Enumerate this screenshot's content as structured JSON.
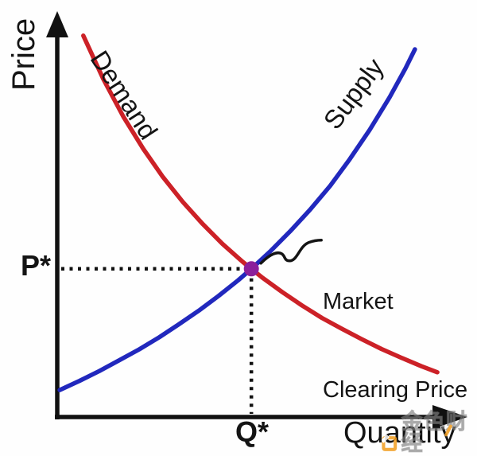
{
  "chart_data": {
    "type": "line",
    "title": "",
    "xlabel": "Quantity",
    "ylabel": "Price",
    "axis_range": {
      "x": [
        0,
        100
      ],
      "y": [
        0,
        100
      ]
    },
    "grid": false,
    "legend": "labels drawn along curves",
    "axis_color": "#111111",
    "series": [
      {
        "name": "Demand",
        "color": "#cc2127",
        "points": [
          [
            6.4,
            94.7
          ],
          [
            11.3,
            83.9
          ],
          [
            16.2,
            74.6
          ],
          [
            21.1,
            66.6
          ],
          [
            25.9,
            59.6
          ],
          [
            30.8,
            53.4
          ],
          [
            35.7,
            47.9
          ],
          [
            40.5,
            43.0
          ],
          [
            45.4,
            38.6
          ],
          [
            47.6,
            36.8
          ],
          [
            50.3,
            34.6
          ],
          [
            55.2,
            31.0
          ],
          [
            60.0,
            27.7
          ],
          [
            64.9,
            24.6
          ],
          [
            69.8,
            21.9
          ],
          [
            74.7,
            19.3
          ],
          [
            79.5,
            16.9
          ],
          [
            84.4,
            14.7
          ],
          [
            89.3,
            12.6
          ],
          [
            93.2,
            11.1
          ]
        ]
      },
      {
        "name": "Supply",
        "color": "#2128bd",
        "points": [
          [
            0.6,
            6.7
          ],
          [
            5.5,
            9.0
          ],
          [
            10.3,
            11.4
          ],
          [
            15.2,
            14.1
          ],
          [
            20.1,
            16.8
          ],
          [
            25.0,
            19.8
          ],
          [
            29.8,
            23.0
          ],
          [
            34.7,
            26.4
          ],
          [
            39.6,
            30.1
          ],
          [
            44.4,
            34.0
          ],
          [
            47.6,
            36.8
          ],
          [
            52.2,
            41.1
          ],
          [
            57.1,
            46.1
          ],
          [
            62.0,
            51.5
          ],
          [
            66.9,
            57.4
          ],
          [
            71.7,
            64.0
          ],
          [
            76.6,
            71.3
          ],
          [
            81.5,
            79.4
          ],
          [
            85.4,
            86.6
          ],
          [
            87.7,
            91.3
          ]
        ]
      }
    ],
    "equilibrium": {
      "q": 47.6,
      "p": 36.8,
      "price_label": "P*",
      "quantity_label": "Q*",
      "point_color": "#8b1f9b",
      "annotation_lines": [
        "Market",
        "Clearing Price"
      ]
    }
  },
  "watermark": {
    "text": "金色财经",
    "accent_color": "#f29d1e"
  }
}
